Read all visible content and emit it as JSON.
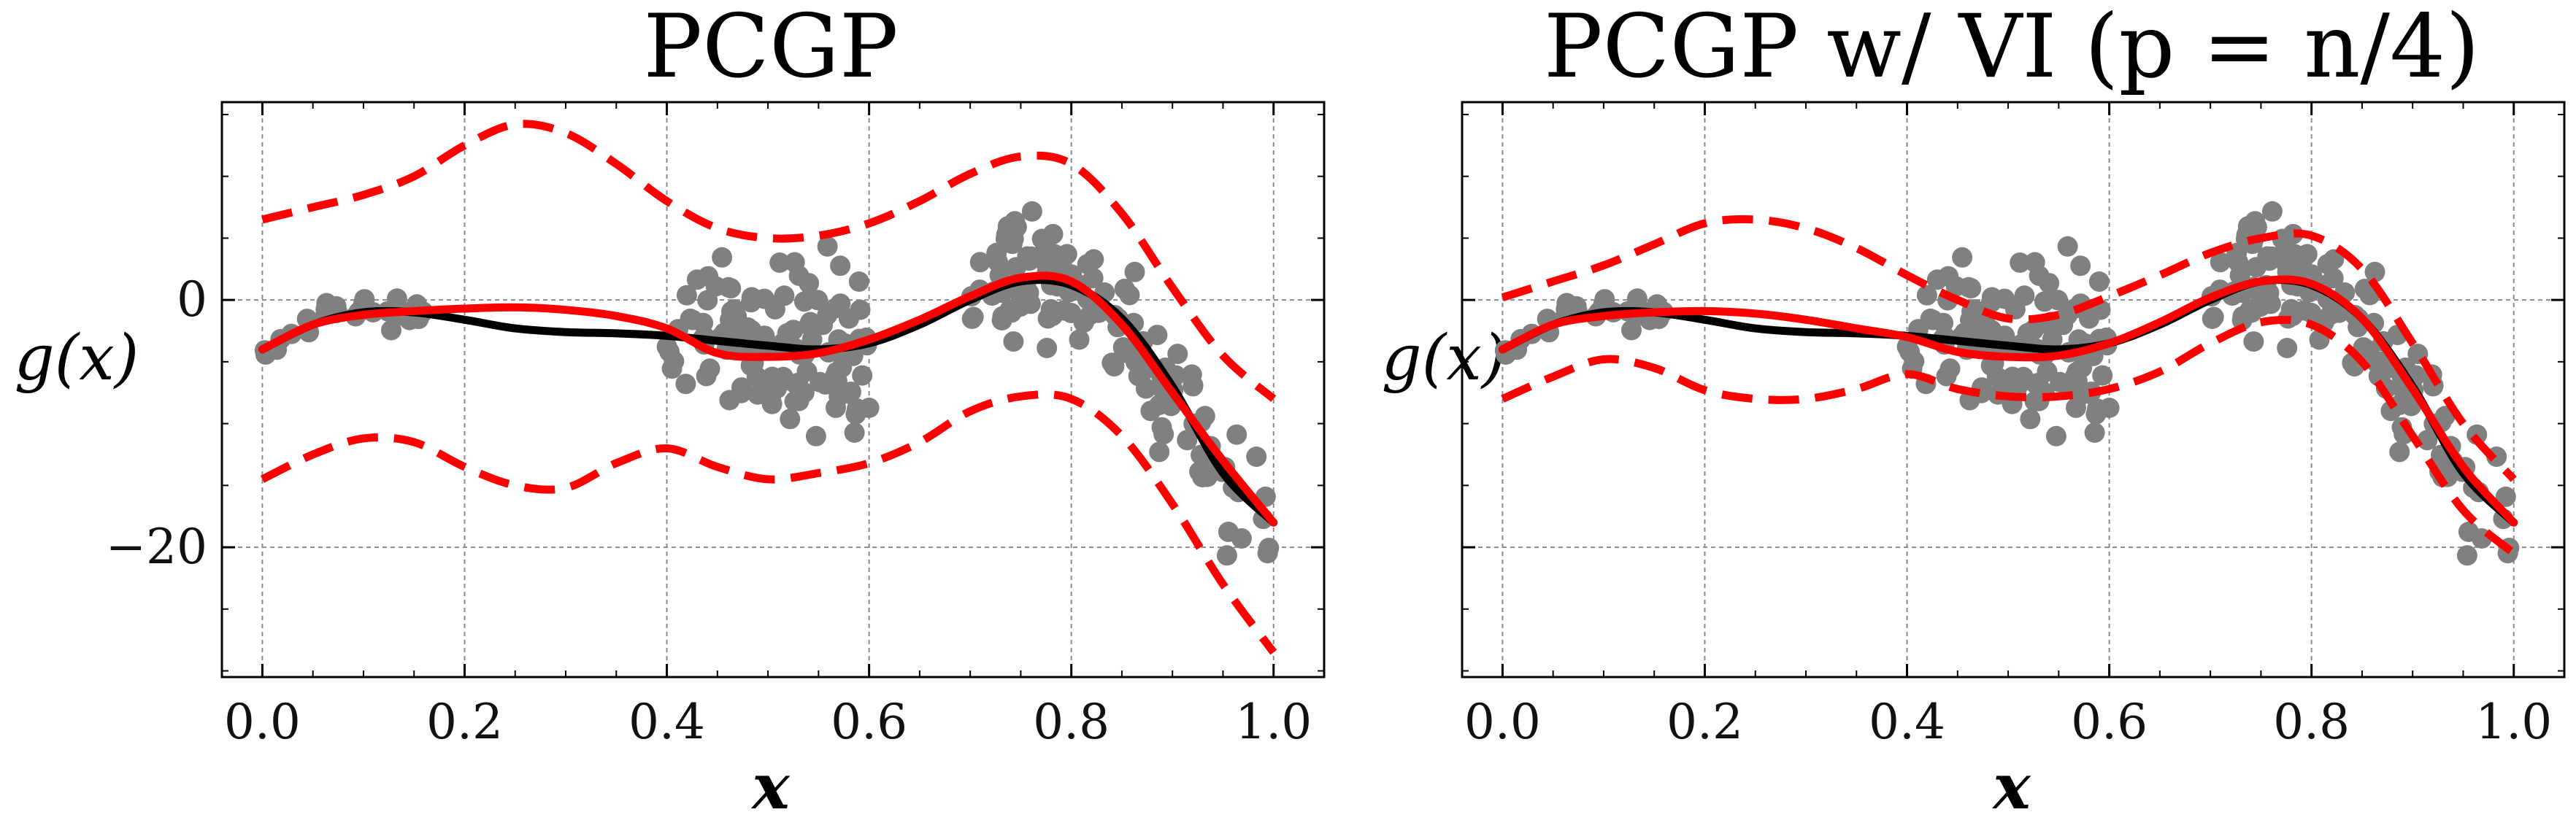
{
  "chart_data": [
    {
      "type": "line",
      "title": "PCGP",
      "xlabel": "x",
      "ylabel": "g(x)",
      "xlim": [
        -0.04,
        1.05
      ],
      "ylim": [
        -30.5,
        16
      ],
      "xticks": [
        0.0,
        0.2,
        0.4,
        0.6,
        0.8,
        1.0
      ],
      "xtick_labels": [
        "0.0",
        "0.2",
        "0.4",
        "0.6",
        "0.8",
        "1.0"
      ],
      "yticks": [
        0,
        -20
      ],
      "ytick_labels": [
        "0",
        "−20"
      ],
      "show_ytick_labels": true,
      "grid": true,
      "colors": {
        "true": "#000000",
        "fit": "#ff0000",
        "points": "#808080"
      },
      "true_curve": {
        "x": [
          0.0,
          0.05,
          0.1,
          0.15,
          0.2,
          0.25,
          0.3,
          0.35,
          0.4,
          0.45,
          0.5,
          0.55,
          0.6,
          0.65,
          0.7,
          0.75,
          0.8,
          0.85,
          0.9,
          0.95,
          1.0
        ],
        "y": [
          -4.0,
          -2.0,
          -1.0,
          -1.0,
          -1.6,
          -2.3,
          -2.6,
          -2.7,
          -2.9,
          -3.3,
          -3.7,
          -4.0,
          -3.5,
          -2.0,
          0.0,
          1.5,
          1.2,
          -1.5,
          -7.0,
          -14.0,
          -18.0
        ]
      },
      "mean": {
        "x": [
          0.0,
          0.05,
          0.1,
          0.15,
          0.2,
          0.25,
          0.3,
          0.35,
          0.4,
          0.45,
          0.5,
          0.55,
          0.6,
          0.65,
          0.7,
          0.75,
          0.8,
          0.85,
          0.9,
          0.95,
          1.0
        ],
        "y": [
          -4.0,
          -2.0,
          -1.2,
          -0.9,
          -0.7,
          -0.6,
          -0.8,
          -1.3,
          -2.3,
          -4.3,
          -4.6,
          -4.3,
          -3.2,
          -1.6,
          0.3,
          1.8,
          1.5,
          -2.0,
          -7.5,
          -13.0,
          -18.0
        ]
      },
      "upper": {
        "x": [
          0.0,
          0.05,
          0.1,
          0.15,
          0.2,
          0.25,
          0.3,
          0.35,
          0.4,
          0.45,
          0.5,
          0.55,
          0.6,
          0.65,
          0.7,
          0.75,
          0.8,
          0.85,
          0.9,
          0.95,
          1.0
        ],
        "y": [
          6.5,
          7.5,
          8.5,
          10.0,
          12.5,
          14.2,
          13.5,
          11.0,
          8.0,
          5.8,
          5.0,
          5.2,
          6.2,
          8.0,
          10.2,
          11.6,
          11.0,
          7.0,
          1.0,
          -4.5,
          -8.0
        ]
      },
      "lower": {
        "x": [
          0.0,
          0.05,
          0.1,
          0.15,
          0.2,
          0.25,
          0.3,
          0.35,
          0.4,
          0.45,
          0.5,
          0.55,
          0.6,
          0.65,
          0.7,
          0.75,
          0.8,
          0.85,
          0.9,
          0.95,
          1.0
        ],
        "y": [
          -14.5,
          -12.5,
          -11.2,
          -11.5,
          -13.5,
          -15.0,
          -15.2,
          -13.2,
          -12.0,
          -13.5,
          -14.5,
          -14.0,
          -13.2,
          -11.5,
          -9.0,
          -7.8,
          -8.0,
          -11.0,
          -16.5,
          -23.0,
          -28.5
        ]
      }
    },
    {
      "type": "line",
      "title": "PCGP w/ VI (p = n/4)",
      "xlabel": "x",
      "ylabel": "g(x)",
      "xlim": [
        -0.04,
        1.05
      ],
      "ylim": [
        -30.5,
        16
      ],
      "xticks": [
        0.0,
        0.2,
        0.4,
        0.6,
        0.8,
        1.0
      ],
      "xtick_labels": [
        "0.0",
        "0.2",
        "0.4",
        "0.6",
        "0.8",
        "1.0"
      ],
      "yticks": [
        0,
        -20
      ],
      "ytick_labels": [
        "",
        ""
      ],
      "show_ytick_labels": false,
      "grid": true,
      "colors": {
        "true": "#000000",
        "fit": "#ff0000",
        "points": "#808080"
      },
      "true_curve": {
        "x": [
          0.0,
          0.05,
          0.1,
          0.15,
          0.2,
          0.25,
          0.3,
          0.35,
          0.4,
          0.45,
          0.5,
          0.55,
          0.6,
          0.65,
          0.7,
          0.75,
          0.8,
          0.85,
          0.9,
          0.95,
          1.0
        ],
        "y": [
          -4.0,
          -2.0,
          -1.0,
          -1.0,
          -1.6,
          -2.3,
          -2.6,
          -2.7,
          -2.9,
          -3.3,
          -3.7,
          -4.0,
          -3.5,
          -2.0,
          0.0,
          1.5,
          1.2,
          -1.5,
          -7.0,
          -14.0,
          -18.0
        ]
      },
      "mean": {
        "x": [
          0.0,
          0.05,
          0.1,
          0.15,
          0.2,
          0.25,
          0.3,
          0.35,
          0.4,
          0.45,
          0.5,
          0.55,
          0.6,
          0.65,
          0.7,
          0.75,
          0.8,
          0.85,
          0.9,
          0.95,
          1.0
        ],
        "y": [
          -4.0,
          -2.0,
          -1.3,
          -1.0,
          -0.9,
          -1.1,
          -1.6,
          -2.3,
          -3.0,
          -4.2,
          -4.6,
          -4.5,
          -3.5,
          -1.8,
          0.2,
          1.5,
          1.3,
          -1.5,
          -7.2,
          -13.5,
          -18.0
        ]
      },
      "upper": {
        "x": [
          0.0,
          0.05,
          0.1,
          0.15,
          0.2,
          0.25,
          0.3,
          0.35,
          0.4,
          0.45,
          0.5,
          0.55,
          0.6,
          0.65,
          0.7,
          0.75,
          0.8,
          0.85,
          0.9,
          0.95,
          1.0
        ],
        "y": [
          0.2,
          1.5,
          2.8,
          4.5,
          6.2,
          6.5,
          5.8,
          4.2,
          2.0,
          0.0,
          -1.5,
          -1.2,
          0.3,
          2.0,
          3.8,
          5.0,
          5.2,
          2.5,
          -3.5,
          -10.0,
          -14.5
        ]
      },
      "lower": {
        "x": [
          0.0,
          0.05,
          0.1,
          0.15,
          0.2,
          0.25,
          0.3,
          0.35,
          0.4,
          0.45,
          0.5,
          0.55,
          0.6,
          0.65,
          0.7,
          0.75,
          0.8,
          0.85,
          0.9,
          0.95,
          1.0
        ],
        "y": [
          -8.0,
          -6.2,
          -4.8,
          -5.5,
          -7.3,
          -8.0,
          -8.0,
          -7.2,
          -6.0,
          -7.2,
          -7.8,
          -7.8,
          -7.2,
          -5.8,
          -3.5,
          -1.8,
          -2.0,
          -5.0,
          -11.0,
          -17.0,
          -20.5
        ]
      }
    }
  ]
}
